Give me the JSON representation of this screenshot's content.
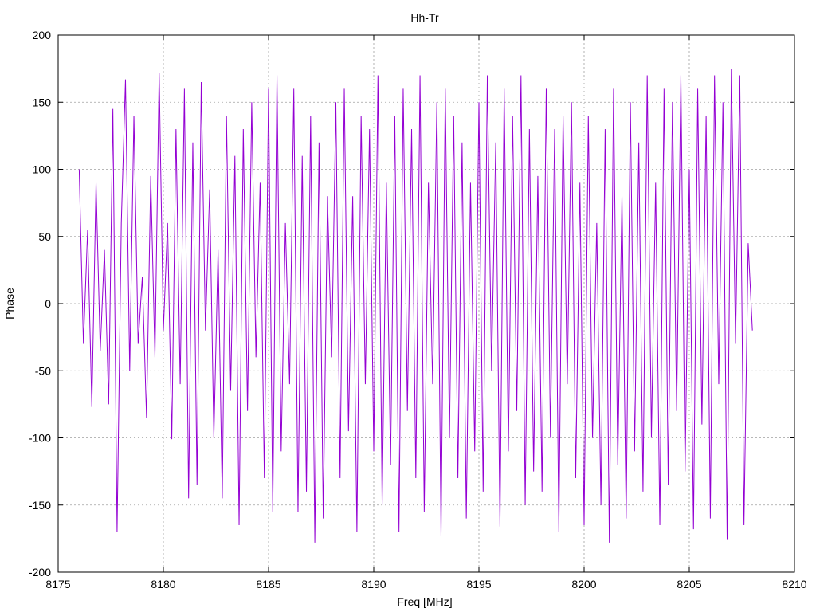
{
  "chart_data": {
    "type": "line",
    "title": "Hh-Tr",
    "xlabel": "Freq [MHz]",
    "ylabel": "Phase",
    "xlim": [
      8175,
      8210
    ],
    "ylim": [
      -200,
      200
    ],
    "xticks": [
      8175,
      8180,
      8185,
      8190,
      8195,
      8200,
      8205,
      8210
    ],
    "yticks": [
      -200,
      -150,
      -100,
      -50,
      0,
      50,
      100,
      150,
      200
    ],
    "xtick_labels": [
      "8175",
      "8180",
      "8185",
      "8190",
      "8195",
      "8200",
      "8205",
      "8210"
    ],
    "ytick_labels": [
      "-200",
      "-150",
      "-100",
      "-50",
      "0",
      "50",
      "100",
      "150",
      "200"
    ],
    "grid": true,
    "series_color": "#9400d3",
    "series": [
      {
        "x": [
          8176.0,
          8176.2,
          8176.4,
          8176.6,
          8176.8,
          8177.0,
          8177.2,
          8177.4,
          8177.6,
          8177.8,
          8178.0,
          8178.2,
          8178.4,
          8178.6,
          8178.8,
          8179.0,
          8179.2,
          8179.4,
          8179.6,
          8179.8,
          8180.0,
          8180.2,
          8180.4,
          8180.6,
          8180.8,
          8181.0,
          8181.2,
          8181.4,
          8181.6,
          8181.8,
          8182.0,
          8182.2,
          8182.4,
          8182.6,
          8182.8,
          8183.0,
          8183.2,
          8183.4,
          8183.6,
          8183.8,
          8184.0,
          8184.2,
          8184.4,
          8184.6,
          8184.8,
          8185.0,
          8185.2,
          8185.4,
          8185.6,
          8185.8,
          8186.0,
          8186.2,
          8186.4,
          8186.6,
          8186.8,
          8187.0,
          8187.2,
          8187.4,
          8187.6,
          8187.8,
          8188.0,
          8188.2,
          8188.4,
          8188.6,
          8188.8,
          8189.0,
          8189.2,
          8189.4,
          8189.6,
          8189.8,
          8190.0,
          8190.2,
          8190.4,
          8190.6,
          8190.8,
          8191.0,
          8191.2,
          8191.4,
          8191.6,
          8191.8,
          8192.0,
          8192.2,
          8192.4,
          8192.6,
          8192.8,
          8193.0,
          8193.2,
          8193.4,
          8193.6,
          8193.8,
          8194.0,
          8194.2,
          8194.4,
          8194.6,
          8194.8,
          8195.0,
          8195.2,
          8195.4,
          8195.6,
          8195.8,
          8196.0,
          8196.2,
          8196.4,
          8196.6,
          8196.8,
          8197.0,
          8197.2,
          8197.4,
          8197.6,
          8197.8,
          8198.0,
          8198.2,
          8198.4,
          8198.6,
          8198.8,
          8199.0,
          8199.2,
          8199.4,
          8199.6,
          8199.8,
          8200.0,
          8200.2,
          8200.4,
          8200.6,
          8200.8,
          8201.0,
          8201.2,
          8201.4,
          8201.6,
          8201.8,
          8202.0,
          8202.2,
          8202.4,
          8202.6,
          8202.8,
          8203.0,
          8203.2,
          8203.4,
          8203.6,
          8203.8,
          8204.0,
          8204.2,
          8204.4,
          8204.6,
          8204.8,
          8205.0,
          8205.2,
          8205.4,
          8205.6,
          8205.8,
          8206.0,
          8206.2,
          8206.4,
          8206.6,
          8206.8,
          8207.0,
          8207.2,
          8207.4,
          8207.6,
          8207.8,
          8208.0
        ],
        "y": [
          100,
          -30,
          55,
          -77,
          90,
          -35,
          40,
          -75,
          145,
          -170,
          60,
          167,
          -50,
          140,
          -30,
          20,
          -85,
          95,
          -40,
          172,
          -20,
          60,
          -101,
          130,
          -60,
          160,
          -145,
          120,
          -135,
          165,
          -20,
          85,
          -100,
          40,
          -145,
          140,
          -65,
          110,
          -165,
          130,
          -80,
          150,
          -40,
          90,
          -130,
          160,
          -155,
          170,
          -110,
          60,
          -60,
          160,
          -155,
          110,
          -140,
          140,
          -178,
          120,
          -160,
          80,
          -40,
          150,
          -130,
          160,
          -95,
          80,
          -170,
          140,
          -60,
          130,
          -110,
          170,
          -150,
          90,
          -120,
          140,
          -170,
          160,
          -80,
          130,
          -130,
          170,
          -155,
          90,
          -60,
          150,
          -173,
          160,
          -100,
          140,
          -130,
          120,
          -160,
          90,
          -110,
          150,
          -140,
          170,
          -50,
          120,
          -166,
          160,
          -110,
          140,
          -80,
          170,
          -150,
          130,
          -125,
          95,
          -140,
          160,
          -100,
          130,
          -170,
          140,
          -60,
          150,
          -130,
          90,
          -165,
          140,
          -100,
          60,
          -150,
          130,
          -178,
          160,
          -120,
          80,
          -160,
          150,
          -110,
          120,
          -140,
          170,
          -100,
          90,
          -165,
          160,
          -135,
          150,
          -80,
          170,
          -125,
          100,
          -168,
          160,
          -90,
          140,
          -160,
          170,
          -60,
          150,
          -176,
          175,
          -30,
          170,
          -165,
          45,
          -20
        ]
      }
    ]
  }
}
